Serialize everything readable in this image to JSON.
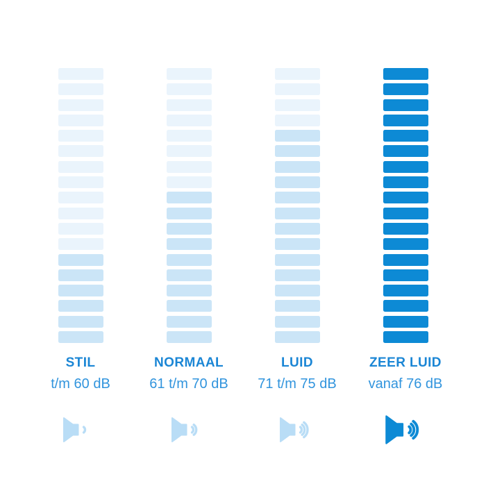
{
  "chart_data": {
    "type": "bar",
    "title": "",
    "categories": [
      "STIL",
      "NORMAAL",
      "LUID",
      "ZEER LUID"
    ],
    "range_labels": [
      "t/m 60 dB",
      "61 t/m 70 dB",
      "71 t/m 75 dB",
      "vanaf 76 dB"
    ],
    "segments_per_column": 18,
    "series": [
      {
        "name": "highlighted_segments_from_bottom",
        "values": [
          6,
          10,
          14,
          18
        ]
      }
    ],
    "legend_position": "none",
    "grid": false,
    "orientation": "vertical-segment-stacks"
  },
  "colors": {
    "background": "#ffffff",
    "segment_faint": "#eaf4fc",
    "segment_soft": "#cbe5f7",
    "segment_strong": "#0d8ad5",
    "title_text": "#1b86d5",
    "range_text": "#3194dd",
    "icon_soft": "#b9ddf6",
    "icon_strong": "#0d8ad5"
  },
  "levels": [
    {
      "id": "stil",
      "title": "STIL",
      "range": "t/m 60 dB",
      "total_segments": 18,
      "highlighted_segments": 6,
      "segment_color_top": "#eaf4fc",
      "segment_color_bottom": "#cbe5f7",
      "icon": "speaker-volume-1-icon",
      "icon_arcs": 1,
      "icon_color": "#b9ddf6",
      "icon_scale": 1
    },
    {
      "id": "normaal",
      "title": "NORMAAL",
      "range": "61 t/m 70 dB",
      "total_segments": 18,
      "highlighted_segments": 10,
      "segment_color_top": "#eaf4fc",
      "segment_color_bottom": "#cbe5f7",
      "icon": "speaker-volume-2-icon",
      "icon_arcs": 2,
      "icon_color": "#b9ddf6",
      "icon_scale": 1
    },
    {
      "id": "luid",
      "title": "LUID",
      "range": "71 t/m 75 dB",
      "total_segments": 18,
      "highlighted_segments": 14,
      "segment_color_top": "#eaf4fc",
      "segment_color_bottom": "#cbe5f7",
      "icon": "speaker-volume-3-icon",
      "icon_arcs": 3,
      "icon_color": "#b9ddf6",
      "icon_scale": 1
    },
    {
      "id": "zeer-luid",
      "title": "ZEER LUID",
      "range": "vanaf 76 dB",
      "total_segments": 18,
      "highlighted_segments": 18,
      "segment_color_top": "#0d8ad5",
      "segment_color_bottom": "#0d8ad5",
      "icon": "speaker-volume-max-icon",
      "icon_arcs": 3,
      "icon_color": "#0d8ad5",
      "icon_scale": 1.15
    }
  ]
}
